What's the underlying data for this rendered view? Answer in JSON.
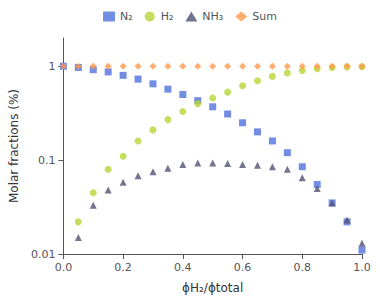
{
  "chart_data": {
    "type": "scatter",
    "xlabel": "ϕH₂/ϕtotal",
    "ylabel": "Molar fractions (%)",
    "log": "y",
    "grid": false,
    "legend": "top",
    "xlim": [
      0.0,
      1.0
    ],
    "xticks": [
      {
        "value": 0.0,
        "label": "0.0"
      },
      {
        "value": 0.2,
        "label": "0.2"
      },
      {
        "value": 0.4,
        "label": "0.4"
      },
      {
        "value": 0.6,
        "label": "0.6"
      },
      {
        "value": 0.8,
        "label": "0.8"
      },
      {
        "value": 1.0,
        "label": "1.0"
      }
    ],
    "ylim": [
      0.01,
      2.0
    ],
    "yticks": [
      0.01,
      0.1,
      1
    ],
    "series": [
      {
        "name": "N₂",
        "marker": "square",
        "x": [
          0.0,
          0.05,
          0.1,
          0.15,
          0.2,
          0.25,
          0.3,
          0.35,
          0.4,
          0.45,
          0.5,
          0.55,
          0.6,
          0.65,
          0.7,
          0.75,
          0.8,
          0.85,
          0.9,
          0.95,
          1.0
        ],
        "values": [
          1.0,
          0.97,
          0.92,
          0.87,
          0.8,
          0.73,
          0.65,
          0.57,
          0.5,
          0.43,
          0.37,
          0.31,
          0.25,
          0.2,
          0.16,
          0.12,
          0.085,
          0.055,
          0.035,
          0.022,
          0.011
        ]
      },
      {
        "name": "H₂",
        "marker": "circle",
        "x": [
          0.05,
          0.1,
          0.15,
          0.2,
          0.25,
          0.3,
          0.35,
          0.4,
          0.45,
          0.5,
          0.55,
          0.6,
          0.65,
          0.7,
          0.75,
          0.8,
          0.85,
          0.9,
          0.95,
          1.0
        ],
        "values": [
          0.022,
          0.045,
          0.08,
          0.11,
          0.16,
          0.21,
          0.27,
          0.33,
          0.4,
          0.46,
          0.53,
          0.62,
          0.7,
          0.78,
          0.85,
          0.9,
          0.94,
          0.97,
          0.985,
          0.99
        ]
      },
      {
        "name": "NH₃",
        "marker": "triangle",
        "x": [
          0.05,
          0.1,
          0.15,
          0.2,
          0.25,
          0.3,
          0.35,
          0.4,
          0.45,
          0.5,
          0.55,
          0.6,
          0.65,
          0.7,
          0.75,
          0.8,
          0.85,
          0.9,
          0.95,
          1.0
        ],
        "values": [
          0.015,
          0.033,
          0.048,
          0.058,
          0.068,
          0.075,
          0.082,
          0.09,
          0.093,
          0.093,
          0.092,
          0.09,
          0.088,
          0.085,
          0.08,
          0.065,
          0.05,
          0.035,
          0.023,
          0.013
        ]
      },
      {
        "name": "Sum",
        "marker": "diamond",
        "x": [
          0.0,
          0.05,
          0.1,
          0.15,
          0.2,
          0.25,
          0.3,
          0.35,
          0.4,
          0.45,
          0.5,
          0.55,
          0.6,
          0.65,
          0.7,
          0.75,
          0.8,
          0.85,
          0.9,
          0.95,
          1.0
        ],
        "values": [
          1.0,
          1.0,
          1.0,
          1.0,
          1.0,
          1.0,
          1.0,
          1.0,
          1.0,
          1.0,
          1.0,
          1.0,
          1.0,
          1.0,
          1.0,
          1.0,
          1.0,
          1.0,
          1.0,
          1.0,
          1.0
        ]
      }
    ]
  }
}
